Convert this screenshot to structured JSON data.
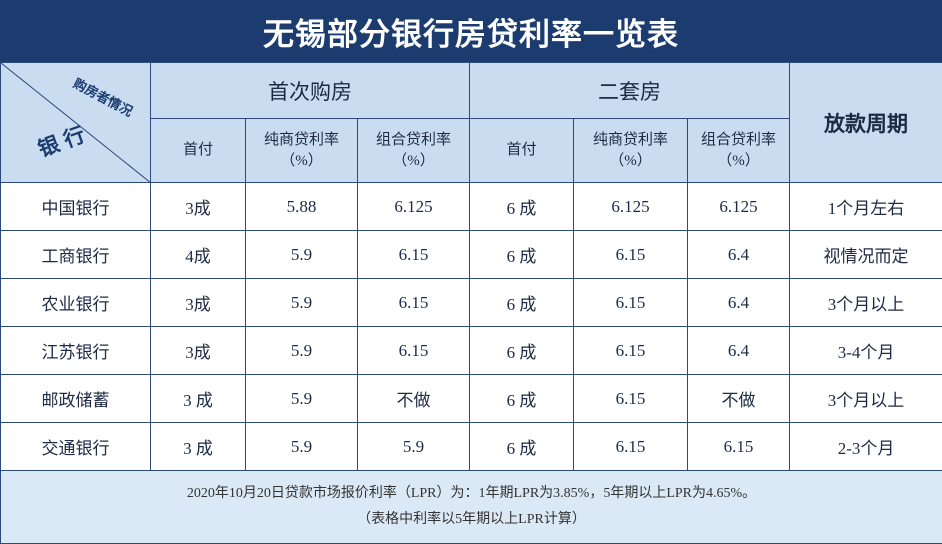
{
  "title": "无锡部分银行房贷利率一览表",
  "header": {
    "corner_top": "购房者情况",
    "corner_bottom": "银行",
    "groups": [
      "首次购房",
      "二套房"
    ],
    "period": "放款周期",
    "subheaders": [
      {
        "label": "首付"
      },
      {
        "label": "纯商贷利率",
        "unit": "（%）"
      },
      {
        "label": "组合贷利率",
        "unit": "（%）"
      },
      {
        "label": "首付"
      },
      {
        "label": "纯商贷利率",
        "unit": "（%）"
      },
      {
        "label": "组合贷利率",
        "unit": "（%）"
      }
    ]
  },
  "table": {
    "rows": [
      [
        "中国银行",
        "3成",
        "5.88",
        "6.125",
        "6 成",
        "6.125",
        "6.125",
        "1个月左右"
      ],
      [
        "工商银行",
        "4成",
        "5.9",
        "6.15",
        "6 成",
        "6.15",
        "6.4",
        "视情况而定"
      ],
      [
        "农业银行",
        "3成",
        "5.9",
        "6.15",
        "6 成",
        "6.15",
        "6.4",
        "3个月以上"
      ],
      [
        "江苏银行",
        "3成",
        "5.9",
        "6.15",
        "6 成",
        "6.15",
        "6.4",
        "3-4个月"
      ],
      [
        "邮政储蓄",
        "3 成",
        "5.9",
        "不做",
        "6 成",
        "6.15",
        "不做",
        "3个月以上"
      ],
      [
        "交通银行",
        "3 成",
        "5.9",
        "5.9",
        "6 成",
        "6.15",
        "6.15",
        "2-3个月"
      ]
    ]
  },
  "footer": [
    "2020年10月20日贷款市场报价利率（LPR）为：1年期LPR为3.85%，5年期以上LPR为4.65%。",
    "（表格中利率以5年期以上LPR计算）"
  ]
}
